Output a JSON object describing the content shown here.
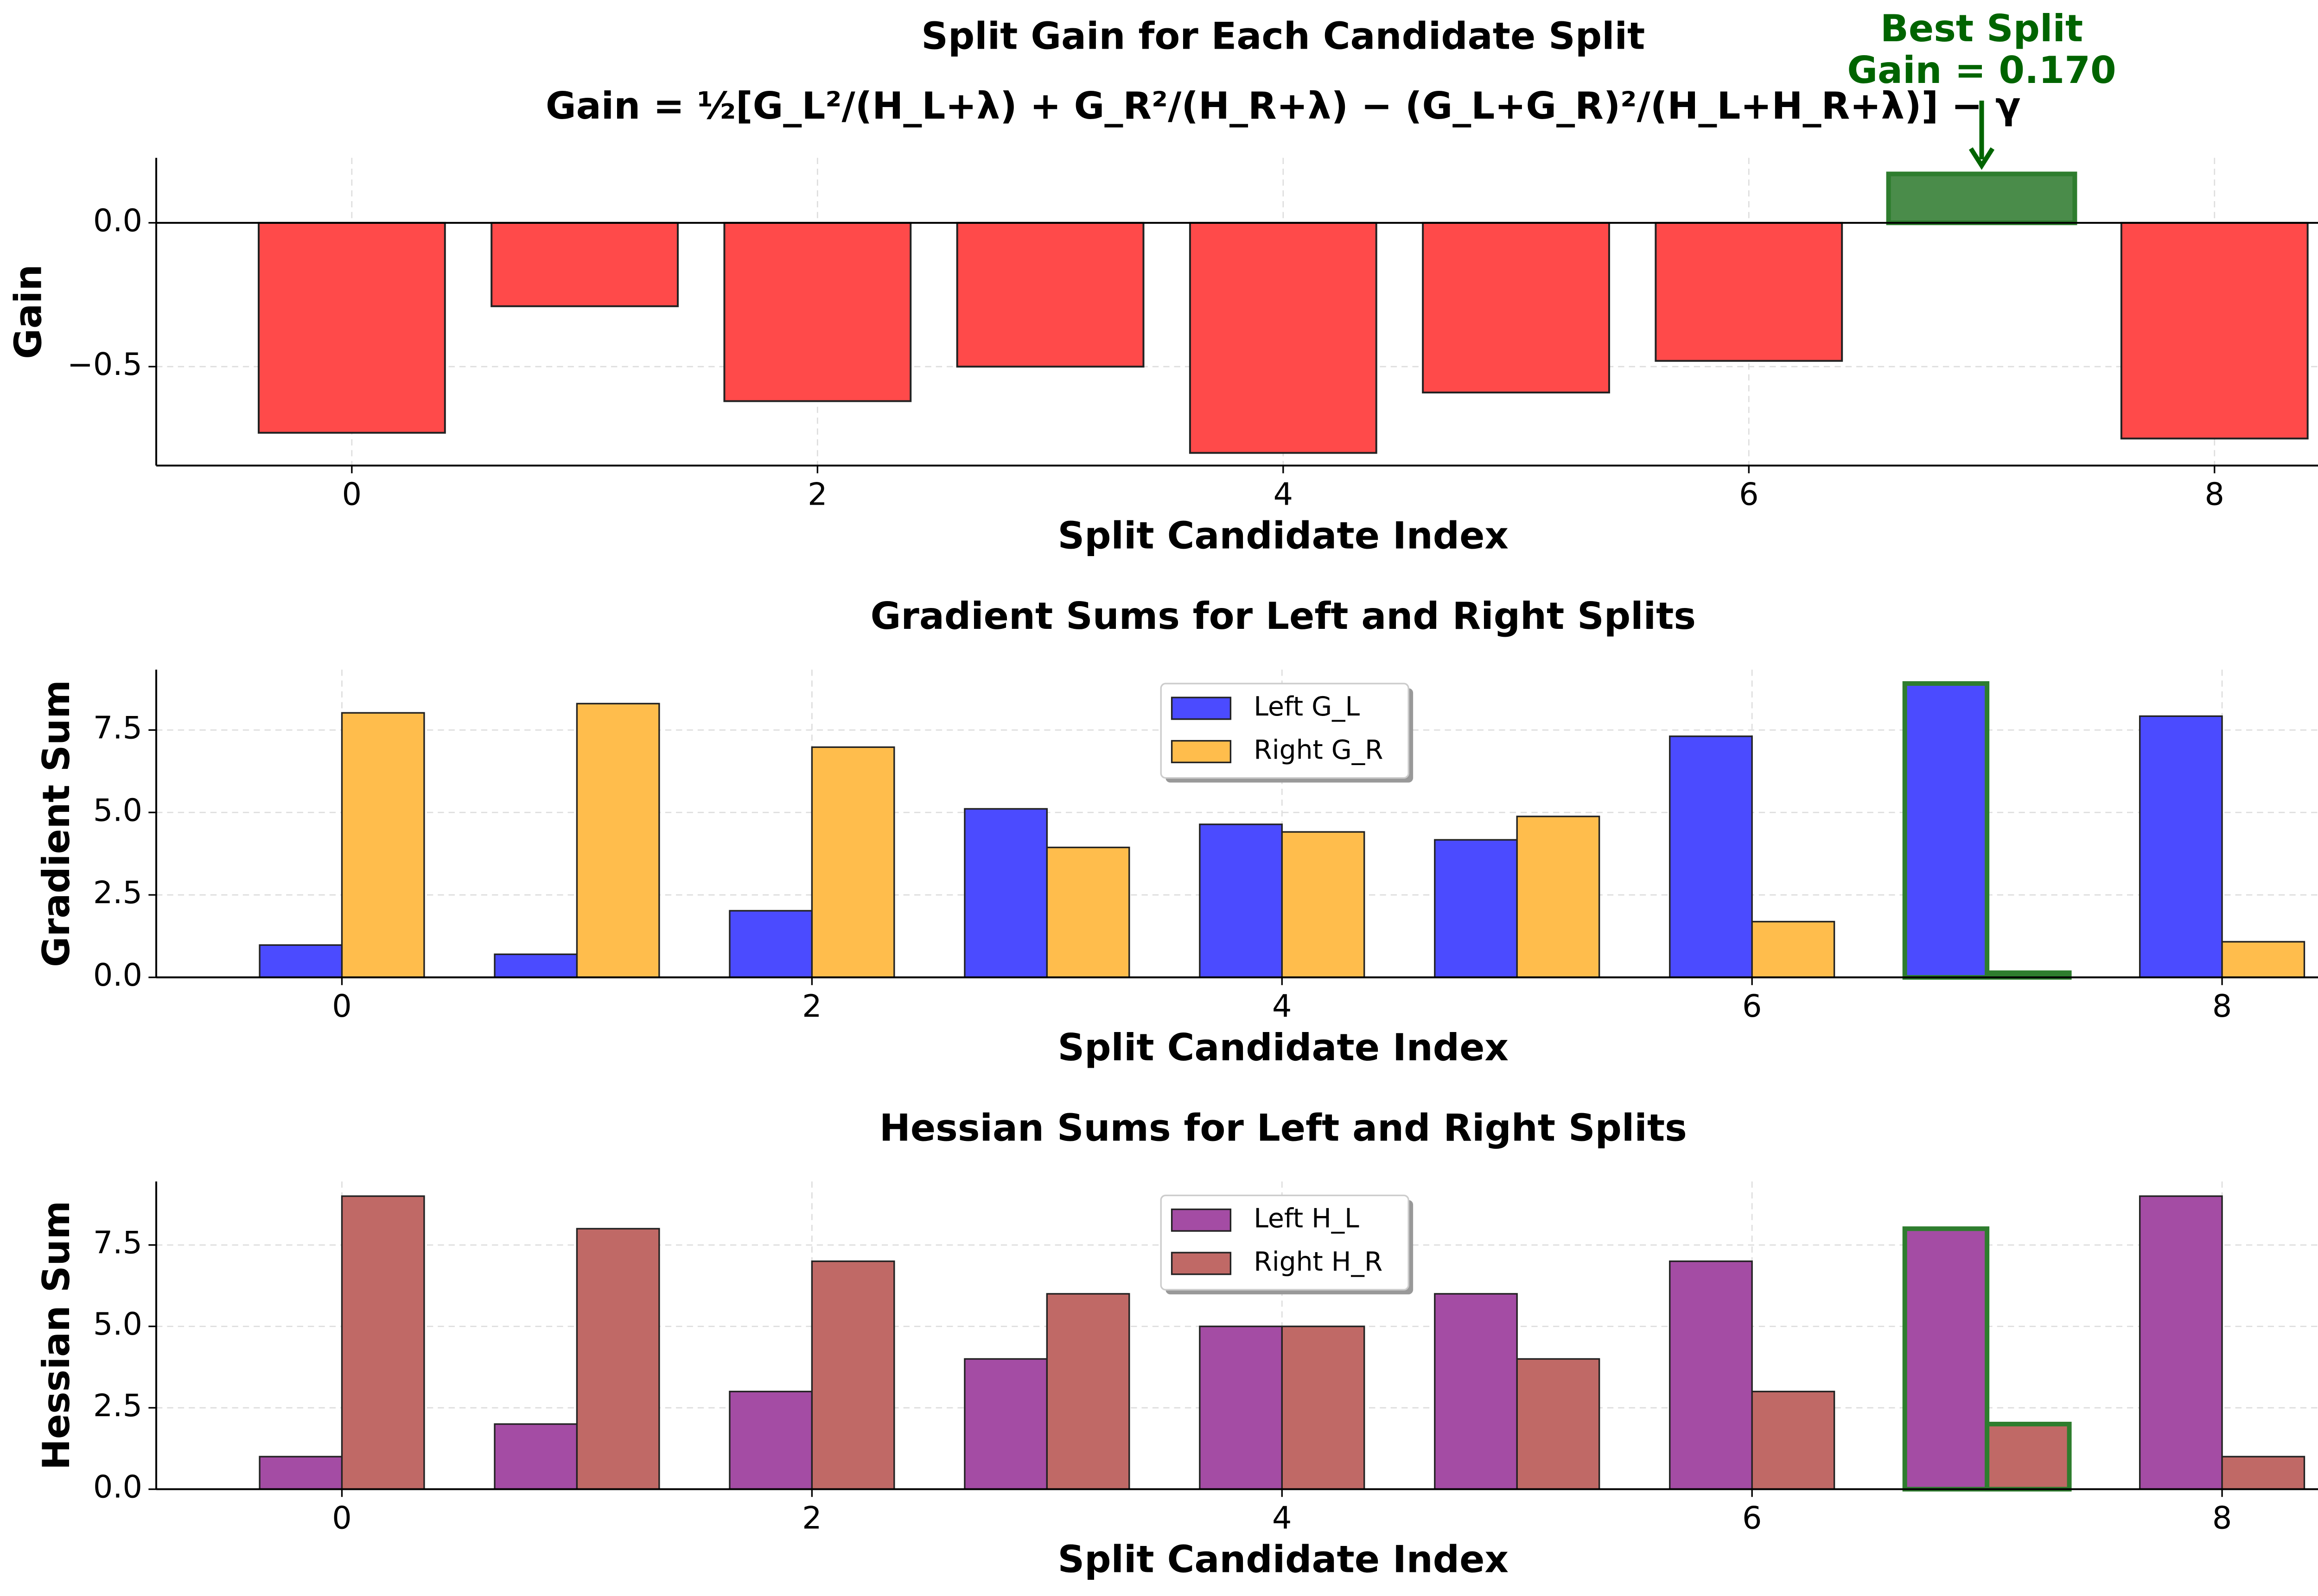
{
  "chart_data": [
    {
      "type": "bar",
      "title": "Split Gain for Each Candidate Split",
      "subtitle": "Gain = ½[G_L²/(H_L+λ) + G_R²/(H_R+λ) − (G_L+G_R)²/(H_L+H_R+λ)] − γ",
      "annotation": [
        "Best Split",
        "Gain = 0.170"
      ],
      "annotation_color": "#006400",
      "x": [
        0,
        1,
        2,
        3,
        4,
        5,
        6,
        7,
        8
      ],
      "values": [
        -0.73,
        -0.29,
        -0.62,
        -0.5,
        -0.8,
        -0.59,
        -0.48,
        0.17,
        -0.75
      ],
      "colors": [
        "#ff4a4a",
        "#ff4a4a",
        "#ff4a4a",
        "#ff4a4a",
        "#ff4a4a",
        "#ff4a4a",
        "#ff4a4a",
        "#4a8c4a",
        "#ff4a4a"
      ],
      "xlabel": "Split Candidate Index",
      "ylabel": "Gain",
      "xlim": [
        -0.84,
        8.84
      ],
      "ylim": [
        -0.844,
        0.226
      ],
      "xticks": [
        0,
        2,
        4,
        6,
        8
      ],
      "yticks": [
        {
          "value": 0,
          "label": "0.0"
        },
        {
          "value": -0.5,
          "label": "−0.5"
        }
      ],
      "grid": true,
      "highlight": 7,
      "highlight_color": "#2e7d2e"
    },
    {
      "type": "grouped_bar",
      "title": "Gradient Sums for Left and Right Splits",
      "x": [
        0,
        1,
        2,
        3,
        4,
        5,
        6,
        7,
        8
      ],
      "series": [
        {
          "name": "Left G_L",
          "color": "#4b4bff",
          "values": [
            0.98,
            0.7,
            2.02,
            5.11,
            4.64,
            4.17,
            7.31,
            8.91,
            7.92
          ]
        },
        {
          "name": "Right G_R",
          "color": "#ffbd4c",
          "values": [
            8.02,
            8.3,
            6.98,
            3.94,
            4.41,
            4.88,
            1.69,
            0.14,
            1.08
          ]
        }
      ],
      "xlabel": "Split Candidate Index",
      "ylabel": "Gradient Sum",
      "xlim": [
        -0.79,
        8.8
      ],
      "ylim": [
        0,
        9.33
      ],
      "xticks": [
        0,
        2,
        4,
        6,
        8
      ],
      "yticks": [
        {
          "value": 0,
          "label": "0.0"
        },
        {
          "value": 2.5,
          "label": "2.5"
        },
        {
          "value": 5,
          "label": "5.0"
        },
        {
          "value": 7.5,
          "label": "7.5"
        }
      ],
      "grid": true,
      "legend": "upper center",
      "highlight": 7,
      "highlight_color": "#2e7d2e"
    },
    {
      "type": "grouped_bar",
      "title": "Hessian Sums for Left and Right Splits",
      "x": [
        0,
        1,
        2,
        3,
        4,
        5,
        6,
        7,
        8
      ],
      "series": [
        {
          "name": "Left H_L",
          "color": "#a44ca4",
          "values": [
            1,
            2,
            3,
            4,
            5,
            6,
            7,
            8,
            9
          ]
        },
        {
          "name": "Right H_R",
          "color": "#c06966",
          "values": [
            9,
            8,
            7,
            6,
            5,
            4,
            3,
            2,
            1
          ]
        }
      ],
      "xlabel": "Split Candidate Index",
      "ylabel": "Hessian Sum",
      "xlim": [
        -0.79,
        8.8
      ],
      "ylim": [
        0,
        9.45
      ],
      "xticks": [
        0,
        2,
        4,
        6,
        8
      ],
      "yticks": [
        {
          "value": 0,
          "label": "0.0"
        },
        {
          "value": 2.5,
          "label": "2.5"
        },
        {
          "value": 5,
          "label": "5.0"
        },
        {
          "value": 7.5,
          "label": "7.5"
        }
      ],
      "grid": true,
      "legend": "upper center",
      "highlight": 7,
      "highlight_color": "#2e7d2e"
    }
  ]
}
